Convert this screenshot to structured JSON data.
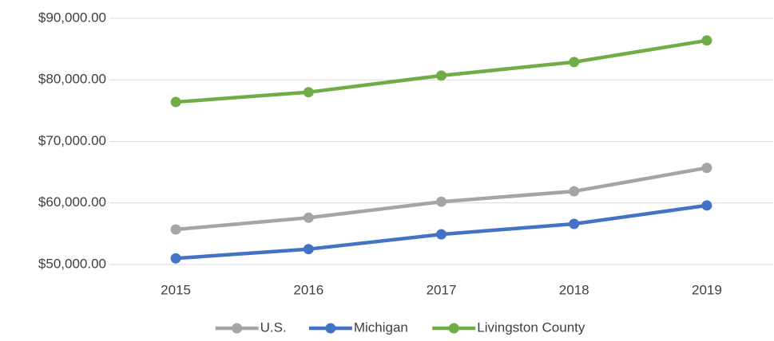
{
  "chart_data": {
    "type": "line",
    "categories": [
      "2015",
      "2016",
      "2017",
      "2018",
      "2019"
    ],
    "series": [
      {
        "name": "U.S.",
        "color": "#a5a5a5",
        "values": [
          55700,
          57600,
          60200,
          61900,
          65700
        ]
      },
      {
        "name": "Michigan",
        "color": "#4472c4",
        "values": [
          51000,
          52500,
          54900,
          56600,
          59600
        ]
      },
      {
        "name": "Livingston County",
        "color": "#70ad47",
        "values": [
          76400,
          78000,
          80700,
          82900,
          86400
        ]
      }
    ],
    "ylim": [
      50000,
      90000
    ],
    "yticks": [
      {
        "value": 50000,
        "label": "$50,000.00"
      },
      {
        "value": 60000,
        "label": "$60,000.00"
      },
      {
        "value": 70000,
        "label": "$70,000.00"
      },
      {
        "value": 80000,
        "label": "$80,000.00"
      },
      {
        "value": 90000,
        "label": "$90,000.00"
      }
    ],
    "grid": true,
    "legend": "bottom"
  }
}
